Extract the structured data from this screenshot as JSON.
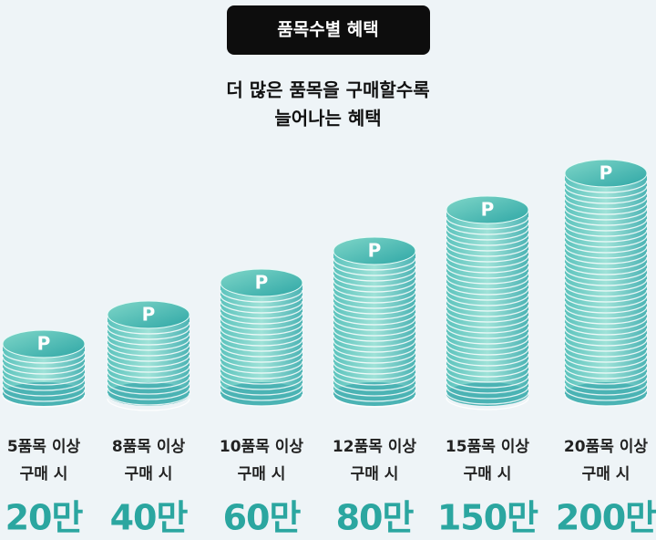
{
  "header": {
    "badge": "품목수별 혜택",
    "subtitle_lines": [
      "더 많은 품목을 구매할수록",
      "늘어나는 혜택"
    ]
  },
  "coin_label": "P",
  "tiers": [
    {
      "condition": "5품목 이상",
      "purchase": "구매 시",
      "reward": "20만"
    },
    {
      "condition": "8품목 이상",
      "purchase": "구매 시",
      "reward": "40만"
    },
    {
      "condition": "10품목 이상",
      "purchase": "구매 시",
      "reward": "60만"
    },
    {
      "condition": "12품목 이상",
      "purchase": "구매 시",
      "reward": "80만"
    },
    {
      "condition": "15품목 이상",
      "purchase": "구매 시",
      "reward": "150만"
    },
    {
      "condition": "20품목 이상",
      "purchase": "구매 시",
      "reward": "200만"
    }
  ]
}
